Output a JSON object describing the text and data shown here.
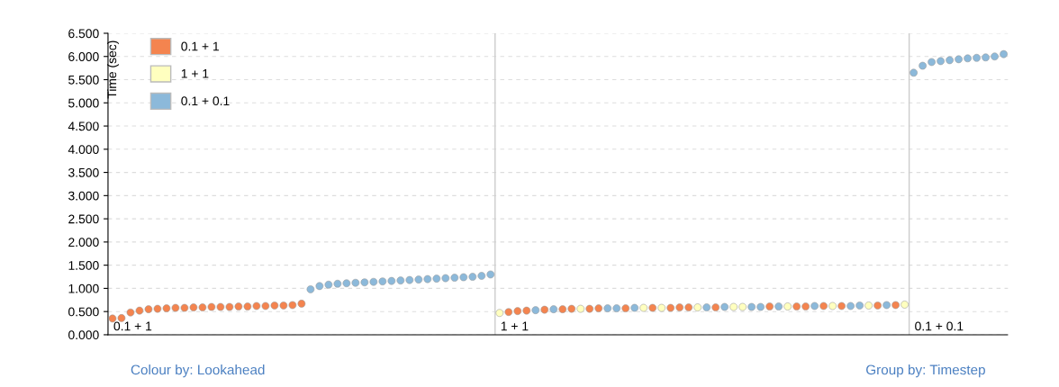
{
  "chart_data": {
    "type": "scatter",
    "ylabel": "Time (sec)",
    "categories": [
      null,
      null,
      null,
      null,
      null,
      null,
      null,
      null,
      null,
      null,
      null,
      null,
      null,
      null,
      null,
      null,
      null,
      null,
      null,
      null,
      null,
      null,
      null,
      null,
      null,
      null,
      null,
      null,
      null,
      null,
      null,
      null,
      null,
      null,
      null,
      null,
      null,
      null,
      null,
      null,
      null,
      null,
      null,
      null,
      null,
      null,
      null,
      null,
      null,
      null,
      null,
      null,
      null,
      null,
      null,
      null,
      null,
      null,
      null,
      null,
      null,
      null,
      null,
      null,
      null,
      null,
      null,
      null,
      null,
      null,
      null,
      null,
      null,
      null,
      null,
      null,
      null,
      null,
      null,
      null,
      null,
      null,
      null,
      null,
      null,
      null,
      null,
      null,
      null,
      null,
      null,
      null,
      null,
      null,
      null,
      null,
      null,
      null,
      null,
      null
    ],
    "series": [
      {
        "name": "0.1 + 1",
        "color": "#f4844f",
        "values": [
          0.35,
          0.36,
          0.48,
          0.52,
          0.55,
          0.56,
          0.57,
          0.58,
          0.58,
          0.59,
          0.59,
          0.6,
          0.6,
          0.6,
          0.61,
          0.61,
          0.62,
          0.62,
          0.63,
          0.63,
          0.64,
          0.67,
          null,
          null,
          null,
          null,
          null,
          null,
          null,
          null,
          null,
          null,
          null,
          null,
          null,
          null,
          null,
          null,
          null,
          null,
          null,
          null,
          null,
          null,
          0.49,
          0.51,
          0.52,
          null,
          0.54,
          null,
          0.55,
          0.56,
          null,
          0.56,
          0.57,
          null,
          null,
          0.57,
          null,
          null,
          0.58,
          null,
          0.58,
          0.59,
          0.59,
          null,
          null,
          0.59,
          null,
          null,
          null,
          null,
          null,
          0.61,
          null,
          null,
          0.61,
          0.61,
          null,
          0.62,
          null,
          0.62,
          null,
          null,
          null,
          0.63,
          null,
          0.64,
          null,
          null,
          null,
          null,
          null,
          null,
          null,
          null,
          null,
          null,
          null,
          null
        ]
      },
      {
        "name": "1 + 1",
        "color": "#ffffbf",
        "values": [
          null,
          null,
          null,
          null,
          null,
          null,
          null,
          null,
          null,
          null,
          null,
          null,
          null,
          null,
          null,
          null,
          null,
          null,
          null,
          null,
          null,
          null,
          null,
          null,
          null,
          null,
          null,
          null,
          null,
          null,
          null,
          null,
          null,
          null,
          null,
          null,
          null,
          null,
          null,
          null,
          null,
          null,
          null,
          0.47,
          null,
          null,
          null,
          null,
          null,
          null,
          null,
          null,
          0.56,
          null,
          null,
          null,
          null,
          null,
          null,
          0.58,
          null,
          0.58,
          null,
          null,
          null,
          0.59,
          null,
          null,
          null,
          0.6,
          0.6,
          null,
          null,
          null,
          null,
          0.61,
          null,
          null,
          null,
          null,
          0.62,
          null,
          null,
          null,
          0.63,
          null,
          null,
          null,
          0.65,
          null,
          null,
          null,
          null,
          null,
          null,
          null,
          null,
          null,
          null,
          null
        ]
      },
      {
        "name": "0.1 + 0.1",
        "color": "#8cb9da",
        "values": [
          null,
          null,
          null,
          null,
          null,
          null,
          null,
          null,
          null,
          null,
          null,
          null,
          null,
          null,
          null,
          null,
          null,
          null,
          null,
          null,
          null,
          null,
          0.98,
          1.05,
          1.08,
          1.1,
          1.11,
          1.12,
          1.13,
          1.14,
          1.15,
          1.16,
          1.17,
          1.18,
          1.19,
          1.2,
          1.21,
          1.22,
          1.23,
          1.24,
          1.25,
          1.27,
          1.3,
          null,
          null,
          null,
          null,
          0.53,
          null,
          0.55,
          null,
          null,
          null,
          null,
          null,
          0.57,
          0.57,
          null,
          0.58,
          null,
          null,
          null,
          null,
          null,
          null,
          null,
          0.59,
          null,
          0.6,
          null,
          null,
          0.6,
          0.6,
          null,
          0.61,
          null,
          null,
          null,
          0.62,
          null,
          null,
          null,
          0.62,
          0.63,
          null,
          null,
          0.64,
          null,
          null,
          5.65,
          5.8,
          5.88,
          5.9,
          5.92,
          5.94,
          5.96,
          5.97,
          5.98,
          6.0,
          6.05
        ]
      }
    ],
    "ylim": [
      0,
      6.5
    ],
    "yticks": [
      {
        "value": 0,
        "label": "0.000"
      },
      {
        "value": 0.5,
        "label": "0.500"
      },
      {
        "value": 1,
        "label": "1.000"
      },
      {
        "value": 1.5,
        "label": "1.500"
      },
      {
        "value": 2,
        "label": "2.000"
      },
      {
        "value": 2.5,
        "label": "2.500"
      },
      {
        "value": 3,
        "label": "3.000"
      },
      {
        "value": 3.5,
        "label": "3.500"
      },
      {
        "value": 4,
        "label": "4.000"
      },
      {
        "value": 4.5,
        "label": "4.500"
      },
      {
        "value": 5,
        "label": "5.000"
      },
      {
        "value": 5.5,
        "label": "5.500"
      },
      {
        "value": 6,
        "label": "6.000"
      },
      {
        "value": 6.5,
        "label": "6.500"
      }
    ],
    "annotations": [
      "0.1 + 1",
      "1 + 1",
      "0.1 + 0.1",
      "Colour by: Lookahead",
      "Group by: Timestep"
    ],
    "grid": "y",
    "legend": "top left",
    "marker": "circle",
    "tick_labels": "y"
  }
}
